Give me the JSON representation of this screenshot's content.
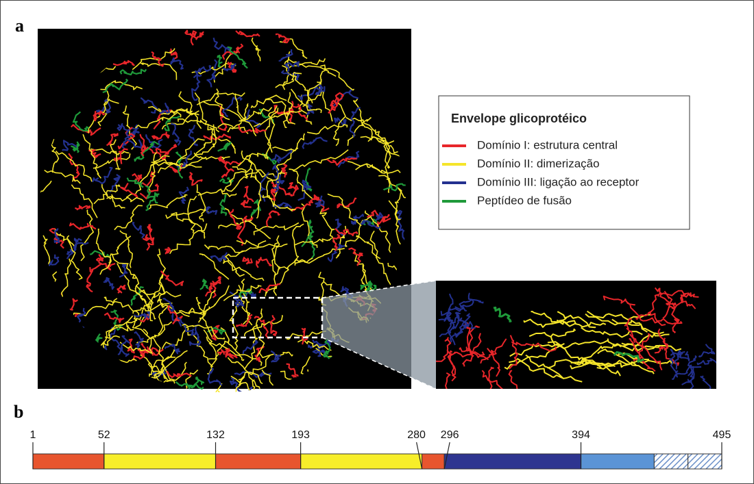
{
  "panels": [
    {
      "label": "a"
    },
    {
      "label": "b"
    }
  ],
  "legend": {
    "title": "Envelope glicoprotéico",
    "items": [
      {
        "label": "Domínio I: estrutura central",
        "color": "#e8262a"
      },
      {
        "label": "Domínio II: dimerização",
        "color": "#f5e52a"
      },
      {
        "label": "Domínio III: ligação ao receptor",
        "color": "#23318f"
      },
      {
        "label": "Peptídeo de fusão",
        "color": "#1f9a3a"
      }
    ]
  },
  "domain_map": {
    "positions": [
      1,
      52,
      132,
      193,
      280,
      296,
      394,
      495
    ],
    "segments": [
      {
        "color": "#e8552e"
      },
      {
        "color": "#f7ee2a"
      },
      {
        "color": "#e8552e"
      },
      {
        "color": "#f7ee2a"
      },
      {
        "color": "#e8552e"
      },
      {
        "color": "#2e3590"
      },
      {
        "color": "#5b94d6"
      }
    ]
  }
}
